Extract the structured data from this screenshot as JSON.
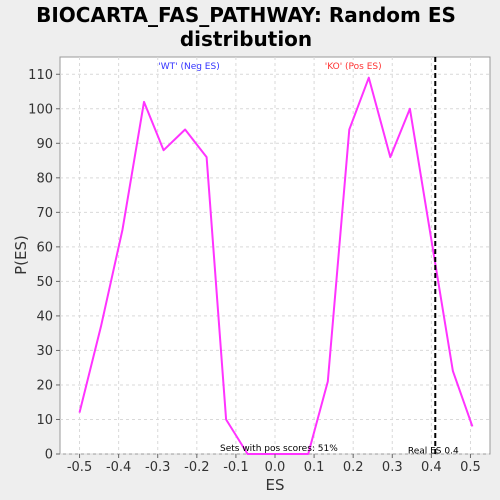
{
  "chart_data": {
    "type": "line",
    "title_lines": [
      "BIOCARTA_FAS_PATHWAY: Random ES",
      "distribution"
    ],
    "xlabel": "ES",
    "ylabel": "P(ES)",
    "xlim": [
      -0.55,
      0.55
    ],
    "ylim": [
      0,
      115
    ],
    "x_ticks": [
      -0.5,
      -0.4,
      -0.3,
      -0.2,
      -0.1,
      0.0,
      0.1,
      0.2,
      0.3,
      0.4,
      0.5
    ],
    "x_tick_labels": [
      "-0.5",
      "-0.4",
      "-0.3",
      "-0.2",
      "-0.1",
      "0.0",
      "0.1",
      "0.2",
      "0.3",
      "0.4",
      "0.5"
    ],
    "y_ticks": [
      0,
      10,
      20,
      30,
      40,
      50,
      60,
      70,
      80,
      90,
      100,
      110
    ],
    "y_tick_labels": [
      "0",
      "10",
      "20",
      "30",
      "40",
      "50",
      "60",
      "70",
      "80",
      "90",
      "100",
      "110"
    ],
    "grid": true,
    "series": [
      {
        "color": "#ff33ff",
        "x": [
          -0.5,
          -0.445,
          -0.39,
          -0.335,
          -0.285,
          -0.23,
          -0.175,
          -0.125,
          -0.07,
          0.085,
          0.135,
          0.19,
          0.24,
          0.295,
          0.345,
          0.4,
          0.455,
          0.505
        ],
        "y": [
          12,
          37,
          65,
          102,
          88,
          94,
          86,
          10,
          0,
          0,
          21,
          94,
          109,
          86,
          100,
          62,
          24,
          8
        ]
      }
    ],
    "real_es": {
      "x": 0.41,
      "label": "Real ES 0.4"
    },
    "annotations": {
      "neg_label": "'WT' (Neg ES)",
      "neg_color": "#3333ff",
      "pos_label": "'KO' (Pos ES)",
      "pos_color": "#ff3333",
      "pos_scores_label": "Sets with pos scores: 51%"
    }
  }
}
